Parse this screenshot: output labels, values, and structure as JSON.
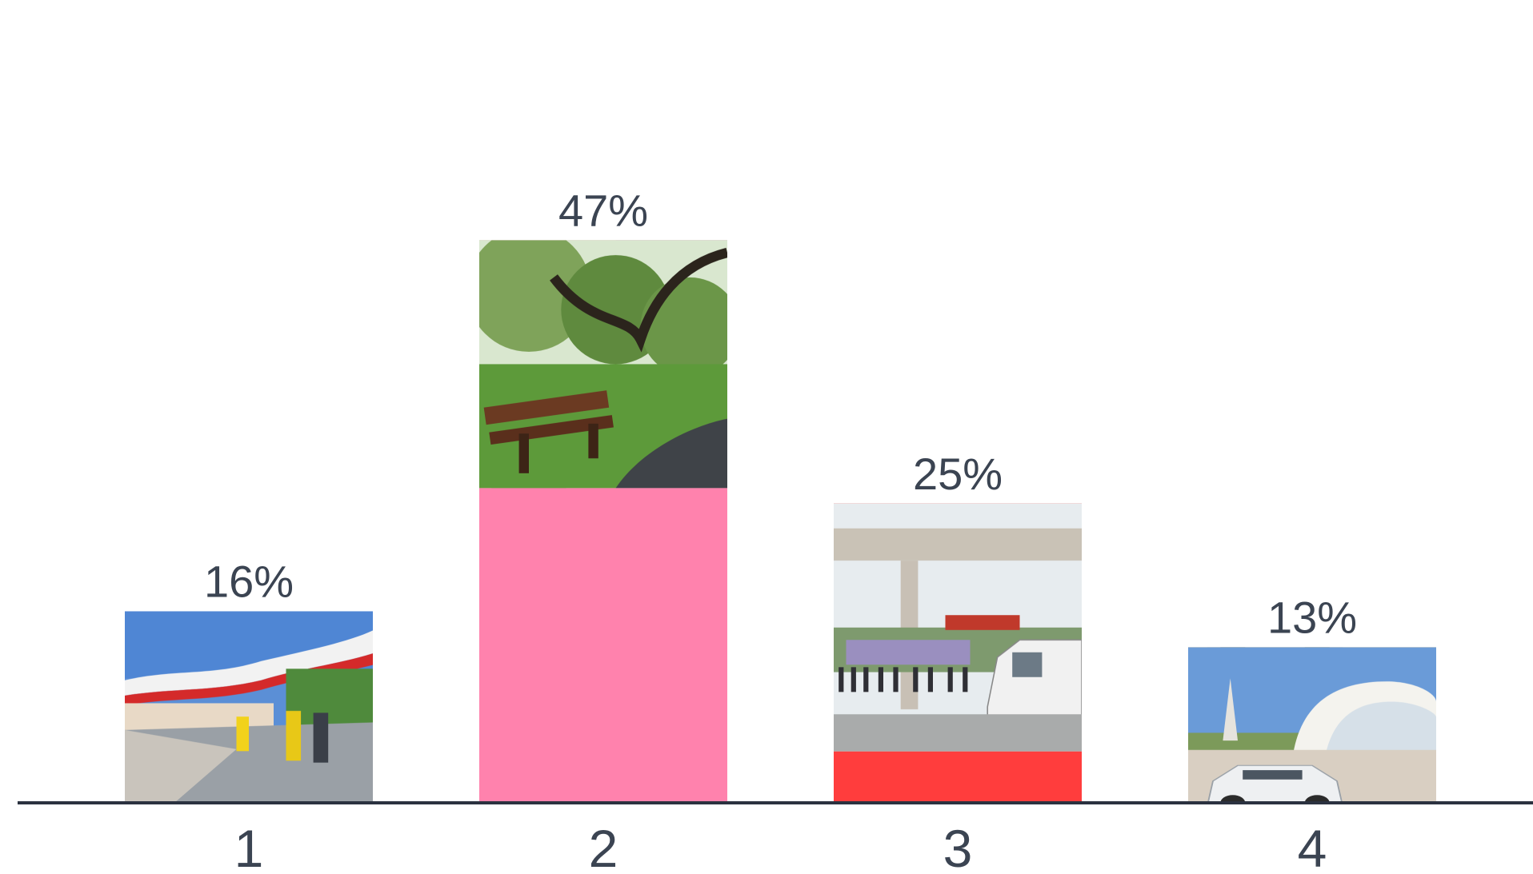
{
  "chart_data": {
    "type": "bar",
    "title": "",
    "xlabel": "",
    "ylabel": "",
    "categories": [
      "1",
      "2",
      "3",
      "4"
    ],
    "values": [
      16,
      47,
      25,
      13
    ],
    "value_labels": [
      "16%",
      "47%",
      "25%",
      "13%"
    ],
    "unit": "%",
    "ylim": [
      0,
      50
    ],
    "grid": false,
    "legend": "none",
    "colors": [
      "#1f6fff",
      "#ff82ad",
      "#ff3d3d",
      "#fec336"
    ],
    "bar_images": [
      "waterfront-promenade-photo",
      "park-bench-photo",
      "bus-stop-photo",
      "plaza-monument-photo"
    ],
    "axis_color": "#2b3240"
  }
}
